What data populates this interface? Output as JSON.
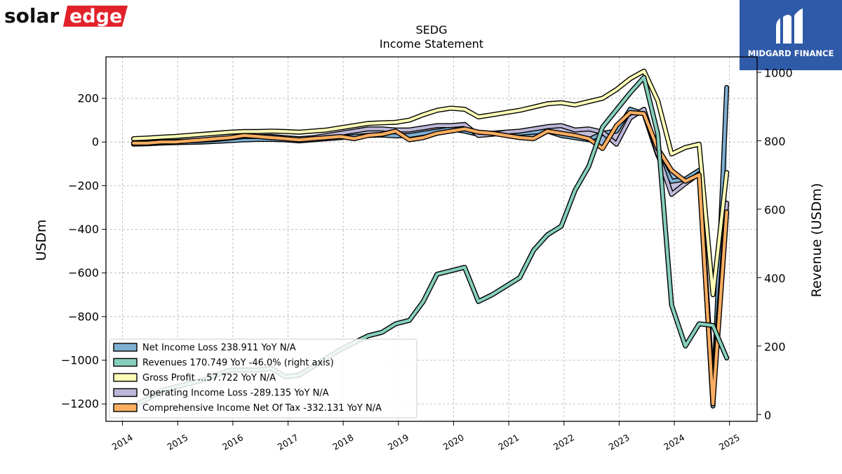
{
  "brand": {
    "logo_text_left": "solar",
    "logo_text_right": "edge",
    "badge_text": "MIDGARD FINANCE"
  },
  "colors": {
    "net_income": "#7fb0d4",
    "revenues": "#86cfbd",
    "gross_profit": "#ffffb8",
    "operating_income": "#bcb7d8",
    "comprehensive_income": "#fdae61",
    "badge_bg": "#2f5aa8",
    "logo_red": "#e2222a"
  },
  "chart_data": {
    "type": "line",
    "title": "SEDG",
    "subtitle": "Income Statement",
    "ylabel": "USDm",
    "y2label": "Revenue (USDm)",
    "ylim": [
      -1280,
      390
    ],
    "y2lim": [
      -20,
      1045
    ],
    "yticks": [
      200,
      0,
      -200,
      -400,
      -600,
      -800,
      -1000,
      -1200
    ],
    "ytick_labels": [
      "200",
      "0",
      "−200",
      "−400",
      "−600",
      "−800",
      "−1000",
      "−1200"
    ],
    "y2ticks": [
      1000,
      800,
      600,
      400,
      200,
      0
    ],
    "y2tick_labels": [
      "1000",
      "800",
      "600",
      "400",
      "200",
      "0"
    ],
    "xlim": [
      2013.7,
      2025.5
    ],
    "xticks": [
      "2014",
      "2015",
      "2016",
      "2017",
      "2018",
      "2019",
      "2020",
      "2021",
      "2022",
      "2023",
      "2024",
      "2025"
    ],
    "grid": true,
    "legend_position": "lower-left",
    "x": [
      2014.2,
      2014.45,
      2014.7,
      2014.95,
      2015.2,
      2015.45,
      2015.7,
      2015.95,
      2016.2,
      2016.45,
      2016.7,
      2016.95,
      2017.2,
      2017.45,
      2017.7,
      2017.95,
      2018.2,
      2018.45,
      2018.7,
      2018.95,
      2019.2,
      2019.45,
      2019.7,
      2019.95,
      2020.2,
      2020.45,
      2020.7,
      2020.95,
      2021.2,
      2021.45,
      2021.7,
      2021.95,
      2022.2,
      2022.45,
      2022.7,
      2022.95,
      2023.2,
      2023.45,
      2023.7,
      2023.95,
      2024.2,
      2024.45,
      2024.7,
      2024.95
    ],
    "series": [
      {
        "name": "Net Income Loss  238.911 YoY N/A",
        "axis": "left",
        "color_key": "net_income",
        "values": [
          -10,
          -8,
          -5,
          -3,
          -2,
          0,
          3,
          6,
          10,
          12,
          12,
          10,
          5,
          10,
          15,
          20,
          25,
          30,
          32,
          28,
          30,
          40,
          50,
          60,
          50,
          35,
          40,
          45,
          40,
          45,
          50,
          30,
          20,
          10,
          40,
          50,
          150,
          130,
          -60,
          -180,
          -170,
          -130,
          -1210,
          250
        ]
      },
      {
        "name": "Revenues  170.749 YoY -46.0% (right axis)",
        "axis": "right",
        "color_key": "revenues",
        "values": [
          25,
          45,
          70,
          80,
          90,
          100,
          115,
          130,
          130,
          130,
          135,
          110,
          115,
          140,
          165,
          190,
          210,
          230,
          240,
          265,
          275,
          330,
          410,
          420,
          430,
          330,
          350,
          375,
          400,
          480,
          525,
          550,
          655,
          725,
          840,
          890,
          940,
          985,
          820,
          320,
          200,
          265,
          260,
          165
        ]
      },
      {
        "name": "Gross Profit  ...57.722 YoY N/A",
        "axis": "left",
        "color_key": "gross_profit",
        "values": [
          15,
          18,
          22,
          25,
          30,
          35,
          40,
          45,
          48,
          48,
          50,
          48,
          45,
          50,
          55,
          65,
          75,
          85,
          88,
          90,
          100,
          125,
          145,
          155,
          150,
          115,
          125,
          135,
          145,
          160,
          175,
          180,
          170,
          185,
          200,
          240,
          290,
          325,
          190,
          -55,
          -25,
          -10,
          -700,
          -140
        ]
      },
      {
        "name": "Operating Income Loss  -289.135 YoY N/A",
        "axis": "left",
        "color_key": "operating_income",
        "values": [
          -5,
          -3,
          0,
          2,
          5,
          8,
          12,
          18,
          25,
          25,
          25,
          20,
          15,
          20,
          30,
          40,
          50,
          60,
          60,
          55,
          55,
          65,
          75,
          75,
          80,
          30,
          35,
          45,
          50,
          60,
          70,
          75,
          55,
          60,
          45,
          -10,
          110,
          150,
          -55,
          -240,
          -190,
          -145,
          -1140,
          -280
        ]
      },
      {
        "name": "Comprehensive Income Net Of Tax  -332.131 YoY N/A",
        "axis": "left",
        "color_key": "comprehensive_income",
        "values": [
          -5,
          -5,
          0,
          0,
          5,
          10,
          15,
          20,
          30,
          25,
          20,
          15,
          10,
          15,
          20,
          25,
          15,
          30,
          35,
          50,
          10,
          20,
          40,
          50,
          60,
          45,
          40,
          30,
          20,
          15,
          50,
          40,
          30,
          15,
          -30,
          75,
          135,
          130,
          -30,
          -130,
          -180,
          -150,
          -1200,
          -320
        ]
      }
    ]
  }
}
